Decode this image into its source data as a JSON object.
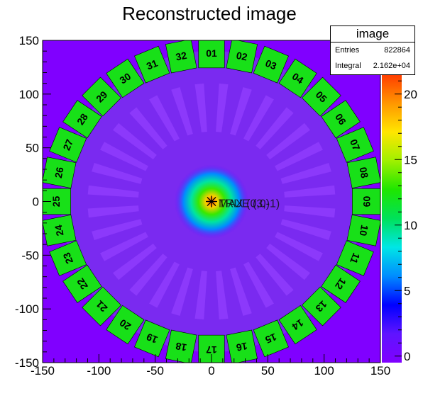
{
  "chart_data": {
    "type": "heatmap",
    "title": "Reconstructed image",
    "xlim": [
      -150,
      150
    ],
    "ylim": [
      -150,
      150
    ],
    "x_ticks": [
      "-150",
      "-100",
      "-50",
      "0",
      "50",
      "100",
      "150"
    ],
    "y_ticks": [
      "150",
      "100",
      "50",
      "0",
      "-50",
      "-100",
      "-150"
    ],
    "z_range": [
      -0.5,
      21.5
    ],
    "z_ticks": [
      "20",
      "15",
      "10",
      "5",
      "0"
    ],
    "stats": {
      "name": "image",
      "entries_label": "Entries",
      "entries_value": "822864",
      "integral_label": "Integral",
      "integral_value": "2.162e+04"
    },
    "hotspot": {
      "x": 0,
      "y": 0,
      "peak": 21
    },
    "markers": [
      {
        "x": 0,
        "y": 0,
        "label": "MAX (0,0)"
      },
      {
        "x": 0,
        "y": 0,
        "label": "TRUE (3,-1)"
      }
    ],
    "detector_ring_radius": 138,
    "detectors": [
      "01",
      "02",
      "03",
      "04",
      "05",
      "06",
      "07",
      "08",
      "09",
      "10",
      "11",
      "12",
      "13",
      "14",
      "15",
      "16",
      "17",
      "18",
      "19",
      "20",
      "21",
      "22",
      "23",
      "24",
      "25",
      "26",
      "27",
      "28",
      "29",
      "30",
      "31",
      "32"
    ],
    "colors": {
      "background": "#8000ff",
      "disk": "#7a2af0",
      "detector": "#18e018",
      "spoke": "#9440ff"
    }
  }
}
